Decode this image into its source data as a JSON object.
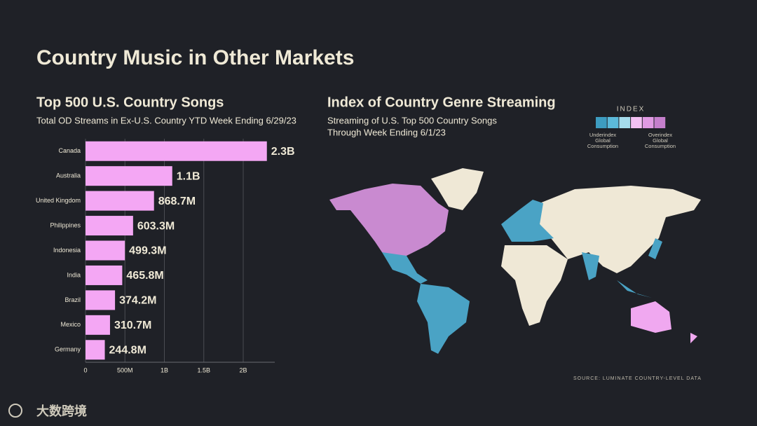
{
  "title": "Country Music in Other Markets",
  "chart_data": {
    "type": "hbar",
    "title": "Top 500 U.S. Country Songs",
    "subtitle": "Total OD Streams in Ex-U.S. Country YTD Week Ending 6/29/23",
    "categories": [
      "Canada",
      "Australia",
      "United Kingdom",
      "Philippines",
      "Indonesia",
      "India",
      "Brazil",
      "Mexico",
      "Germany"
    ],
    "values": [
      2300000000,
      1100000000,
      868700000,
      603300000,
      499300000,
      465800000,
      374200000,
      310700000,
      244800000
    ],
    "value_labels": [
      "2.3B",
      "1.1B",
      "868.7M",
      "603.3M",
      "499.3M",
      "465.8M",
      "374.2M",
      "310.7M",
      "244.8M"
    ],
    "color": "#f4a7f4",
    "xlim": [
      0,
      2400000000
    ],
    "xticks": [
      0,
      {
        "value": 500000000,
        "label": "500M"
      },
      {
        "value": 1000000000,
        "label": "1B"
      },
      {
        "value": 1500000000,
        "label": "1.5B"
      },
      {
        "value": 2000000000,
        "label": "2B"
      }
    ],
    "grid": true
  },
  "map": {
    "title": "Index of Country Genre Streaming",
    "subtitle": [
      "Streaming of U.S. Top 500 Country Songs",
      "Through Week Ending 6/1/23"
    ],
    "legend_title": "INDEX",
    "legend_colors": [
      "#3d9cc0",
      "#5cb9d9",
      "#a6dcec",
      "#f3c1f3",
      "#e09ae3",
      "#c57fcc"
    ],
    "low_label": [
      "Underindex",
      "Global",
      "Consumption"
    ],
    "high_label": [
      "Overindex",
      "Global",
      "Consumption"
    ]
  },
  "source": "SOURCE: LUMINATE COUNTRY-LEVEL DATA",
  "watermark": "大数跨境"
}
